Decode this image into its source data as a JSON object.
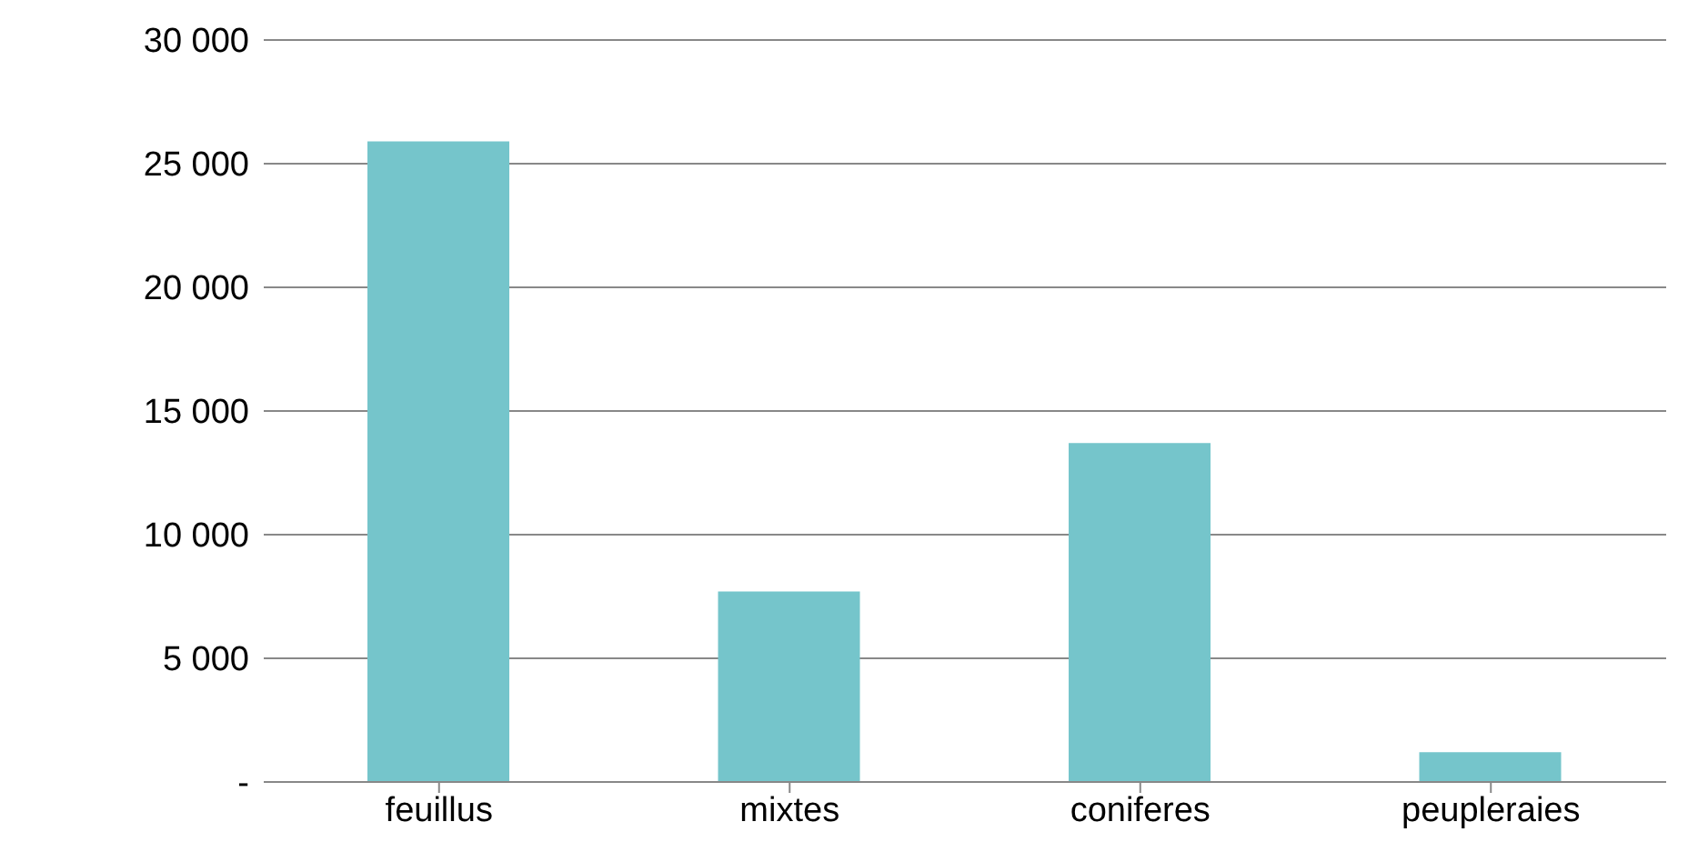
{
  "chart_data": {
    "type": "bar",
    "categories": [
      "feuillus",
      "mixtes",
      "coniferes",
      "peupleraies"
    ],
    "values": [
      25900,
      7700,
      13700,
      1200
    ],
    "color": "#75c5cb",
    "ylim": [
      0,
      30000
    ],
    "yticks": [
      {
        "value": 0,
        "label": "-"
      },
      {
        "value": 5000,
        "label": "5 000"
      },
      {
        "value": 10000,
        "label": "10 000"
      },
      {
        "value": 15000,
        "label": "15 000"
      },
      {
        "value": 20000,
        "label": "20 000"
      },
      {
        "value": 25000,
        "label": "25 000"
      },
      {
        "value": 30000,
        "label": "30 000"
      }
    ],
    "grid": "y"
  }
}
